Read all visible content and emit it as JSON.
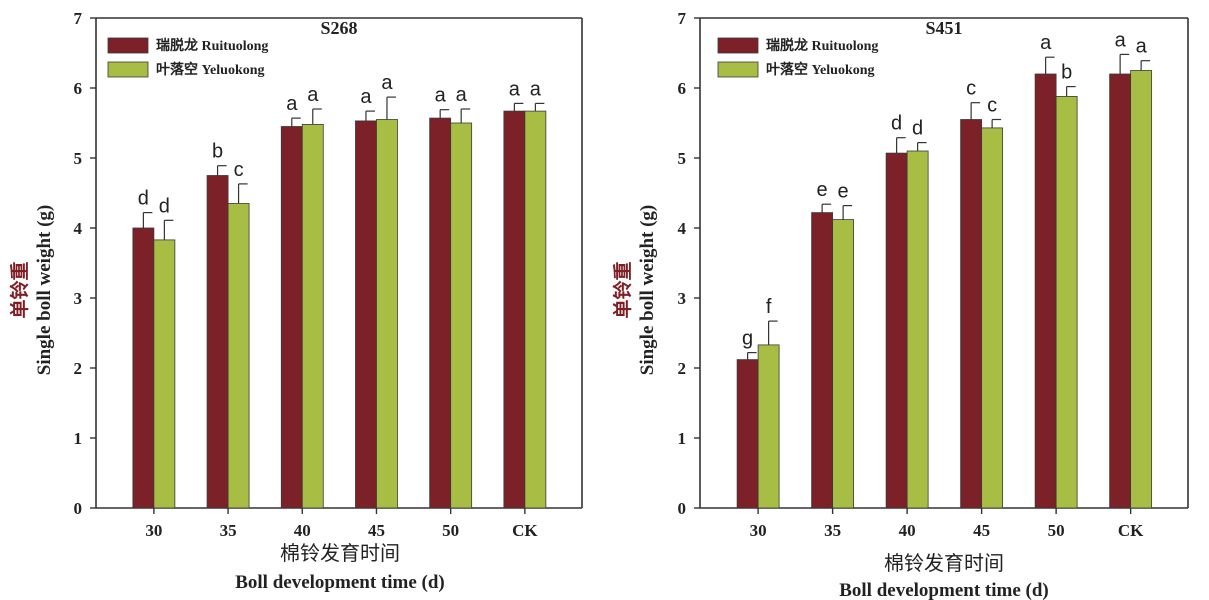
{
  "chart_data": [
    {
      "type": "bar",
      "title": "S268",
      "xlabel_cn": "棉铃发育时间",
      "xlabel_en": "Boll development time (d)",
      "ylabel_cn": "单铃重",
      "ylabel_en": "Single boll weight (g)",
      "ylim": [
        0,
        7
      ],
      "yticks": [
        "0",
        "1",
        "2",
        "3",
        "4",
        "5",
        "6",
        "7"
      ],
      "categories": [
        "30",
        "35",
        "40",
        "45",
        "50",
        "CK"
      ],
      "legend_position": "top-left",
      "series": [
        {
          "name": "瑞脱龙 Ruituolong",
          "color": "#7b2127",
          "values": [
            4.0,
            4.75,
            5.45,
            5.53,
            5.57,
            5.67
          ],
          "errors": [
            0.22,
            0.14,
            0.12,
            0.14,
            0.12,
            0.11
          ],
          "labels": [
            "d",
            "b",
            "a",
            "a",
            "a",
            "a"
          ]
        },
        {
          "name": "叶落空 Yeluokong",
          "color": "#a8bd44",
          "values": [
            3.83,
            4.35,
            5.48,
            5.55,
            5.5,
            5.67
          ],
          "errors": [
            0.28,
            0.28,
            0.22,
            0.32,
            0.2,
            0.11
          ],
          "labels": [
            "d",
            "c",
            "a",
            "a",
            "a",
            "a"
          ]
        }
      ]
    },
    {
      "type": "bar",
      "title": "S451",
      "xlabel_cn": "棉铃发育时间",
      "xlabel_en": "Boll development time (d)",
      "ylabel_cn": "单铃重",
      "ylabel_en": "Single boll weight (g)",
      "ylim": [
        0,
        7
      ],
      "yticks": [
        "0",
        "1",
        "2",
        "3",
        "4",
        "5",
        "6",
        "7"
      ],
      "categories": [
        "30",
        "35",
        "40",
        "45",
        "50",
        "CK"
      ],
      "legend_position": "top-left",
      "series": [
        {
          "name": "瑞脱龙 Ruituolong",
          "color": "#7b2127",
          "values": [
            2.12,
            4.22,
            5.07,
            5.55,
            6.2,
            6.2
          ],
          "errors": [
            0.1,
            0.12,
            0.22,
            0.24,
            0.24,
            0.28
          ],
          "labels": [
            "g",
            "e",
            "d",
            "c",
            "a",
            "a"
          ]
        },
        {
          "name": "叶落空 Yeluokong",
          "color": "#a8bd44",
          "values": [
            2.33,
            4.12,
            5.1,
            5.43,
            5.88,
            6.25
          ],
          "errors": [
            0.34,
            0.2,
            0.12,
            0.12,
            0.14,
            0.14
          ],
          "labels": [
            "f",
            "e",
            "d",
            "c",
            "b",
            "a"
          ]
        }
      ]
    }
  ]
}
